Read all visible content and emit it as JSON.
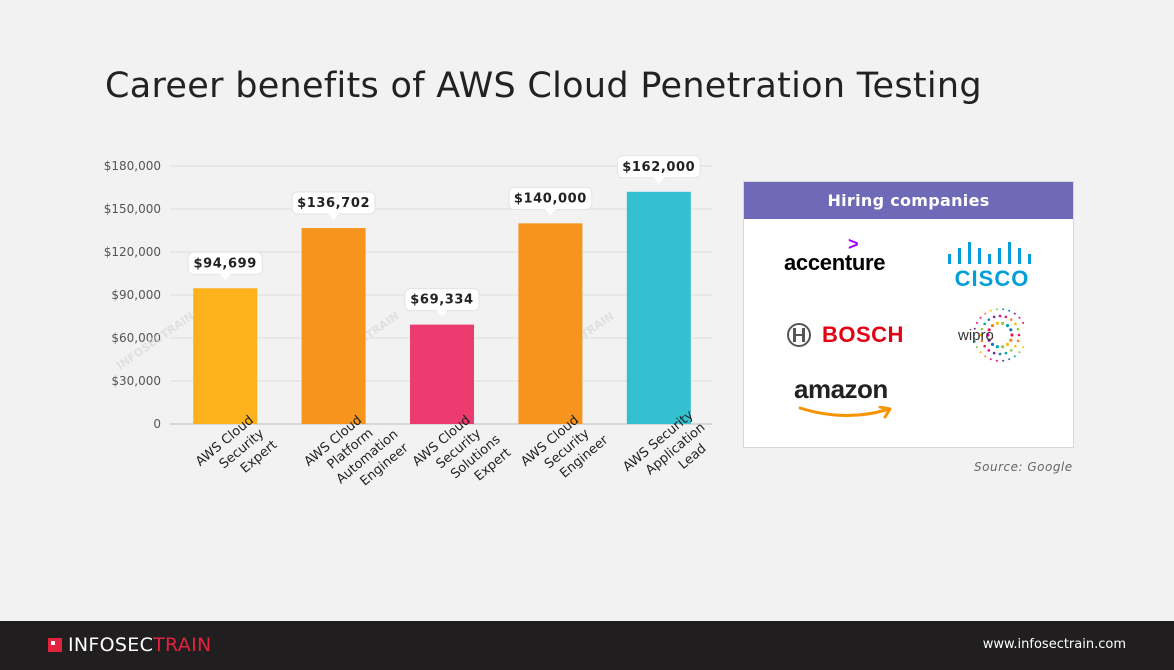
{
  "title": "Career benefits of AWS Cloud Penetration Testing",
  "chart_data": {
    "type": "bar",
    "categories": [
      "AWS Cloud Security Expert",
      "AWS Cloud Platform Automation Engineer",
      "AWS Cloud Security Solutions Expert",
      "AWS Cloud Security Engineer",
      "AWS Security Application Lead"
    ],
    "category_lines": [
      [
        "AWS Cloud",
        "Security",
        "Expert"
      ],
      [
        "AWS Cloud",
        "Platform",
        "Automation",
        "Engineer"
      ],
      [
        "AWS Cloud",
        "Security",
        "Solutions",
        "Expert"
      ],
      [
        "AWS Cloud",
        "Security",
        "Engineer"
      ],
      [
        "AWS Security",
        "Application",
        "Lead"
      ]
    ],
    "values": [
      94699,
      136702,
      69334,
      140000,
      162000
    ],
    "data_labels": [
      "$94,699",
      "$136,702",
      "$69,334",
      "$140,000",
      "$162,000"
    ],
    "colors": [
      "#fdb11b",
      "#f7941d",
      "#ec3b6e",
      "#f7941d",
      "#33c0d1"
    ],
    "ylim": [
      0,
      180000
    ],
    "yticks": [
      0,
      30000,
      60000,
      90000,
      120000,
      150000,
      180000
    ],
    "ytick_labels": [
      "0",
      "$30,000",
      "$60,000",
      "$90,000",
      "$120,000",
      "$150,000",
      "$180,000"
    ],
    "grid": true
  },
  "hiring": {
    "header": "Hiring companies",
    "companies": [
      "accenture",
      "CISCO",
      "BOSCH",
      "wipro",
      "amazon"
    ]
  },
  "source": "Source: Google",
  "watermark": "INFOSECTRAIN",
  "footer": {
    "brand_part1": "INFOSEC",
    "brand_part2": "TRAIN",
    "website": "www.infosectrain.com"
  }
}
